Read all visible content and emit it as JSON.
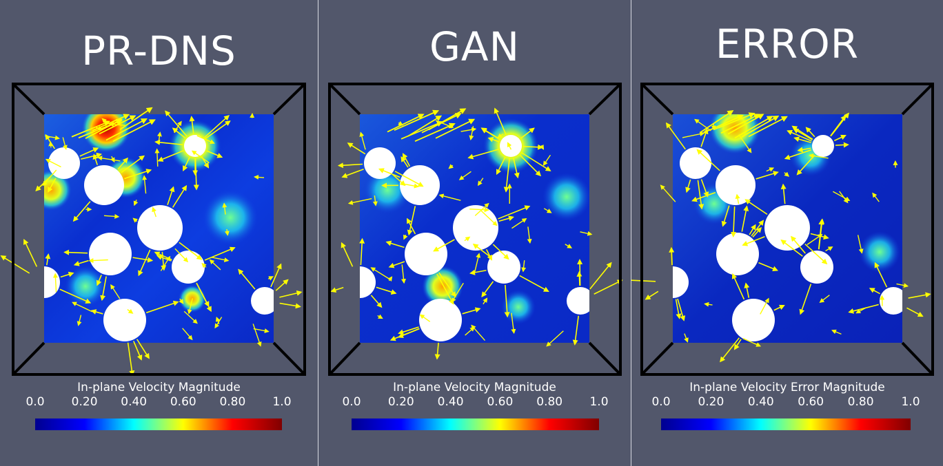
{
  "panels": [
    {
      "title": "PR-DNS",
      "colorbar_label": "In-plane Velocity Magnitude",
      "ticks": [
        "0.0",
        "0.20",
        "0.40",
        "0.60",
        "0.80",
        "1.0"
      ]
    },
    {
      "title": "GAN",
      "colorbar_label": "In-plane Velocity Magnitude",
      "ticks": [
        "0.0",
        "0.20",
        "0.40",
        "0.60",
        "0.80",
        "1.0"
      ]
    },
    {
      "title": "ERROR",
      "colorbar_label": "In-plane Velocity Error Magnitude",
      "ticks": [
        "0.0",
        "0.20",
        "0.40",
        "0.60",
        "0.80",
        "1.0"
      ]
    }
  ],
  "colors": {
    "background": "#52576b",
    "arrow": "#ffff00",
    "frame": "#000000",
    "particle": "#ffffff",
    "colormap": [
      "#00008f",
      "#0000ff",
      "#00ffff",
      "#ffff00",
      "#ff0000",
      "#800000"
    ]
  }
}
